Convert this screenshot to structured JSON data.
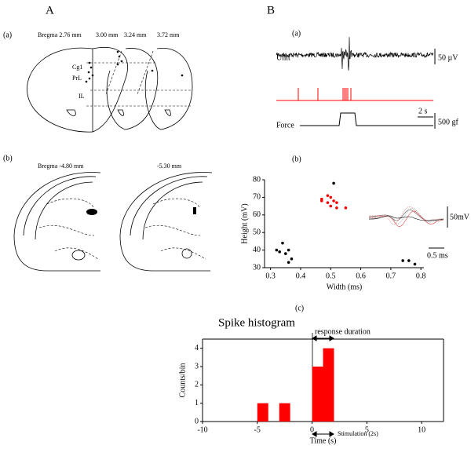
{
  "panels": {
    "A": "A",
    "B": "B",
    "Aa": "(a)",
    "Ab": "(b)",
    "Ba": "(a)",
    "Bb": "(b)",
    "Bc": "(c)"
  },
  "atlas": {
    "top_labels": [
      "Bregma 2.76 mm",
      "3.00 mm",
      "3.24 mm",
      "3.72 mm"
    ],
    "regions": [
      "Cg1",
      "PrL",
      "IL"
    ],
    "bottom_labels": [
      "Bregma -4.80 mm",
      "-5.30 mm"
    ]
  },
  "recording": {
    "unit_label": "Unit",
    "unit_scale": "50 µV",
    "time_scale": "2 s",
    "force_label": "Force",
    "force_scale": "500 gf"
  },
  "waveforms": {
    "amp_scale": "50mV",
    "time_scale": "0.5 ms"
  },
  "chart_data": [
    {
      "type": "scatter",
      "x_label": "Width (ms)",
      "y_label": "Height (mV)",
      "xlim": [
        0.28,
        0.81
      ],
      "xticks": [
        0.3,
        0.4,
        0.5,
        0.6,
        0.7,
        0.8
      ],
      "ylim": [
        30,
        80
      ],
      "yticks": [
        30,
        40,
        50,
        60,
        70,
        80
      ],
      "series": [
        {
          "color": "#000000",
          "x": [
            0.32,
            0.33,
            0.34,
            0.35,
            0.36,
            0.37,
            0.36,
            0.51,
            0.74,
            0.76,
            0.78
          ],
          "values": [
            40,
            39,
            44,
            38,
            40,
            35,
            33,
            78,
            34,
            34,
            32
          ]
        },
        {
          "color": "#ff0000",
          "x": [
            0.47,
            0.49,
            0.5,
            0.51,
            0.49,
            0.52,
            0.5,
            0.52,
            0.55,
            0.47
          ],
          "values": [
            69,
            71,
            70,
            68,
            67,
            67,
            65,
            64,
            64,
            68
          ]
        }
      ]
    },
    {
      "type": "histogram",
      "title": "Spike histogram",
      "x_label": "Time (s)",
      "y_label": "Counts/bin",
      "color": "#ff0000",
      "xlim": [
        -10,
        12
      ],
      "xticks": [
        -10,
        -5,
        0,
        5,
        10
      ],
      "ylim": [
        0,
        4.5
      ],
      "yticks": [
        0,
        1,
        2,
        3,
        4
      ],
      "bins": [
        -10,
        -9,
        -8,
        -7,
        -6,
        -5,
        -4,
        -3,
        -2,
        -1,
        0,
        1,
        2,
        3,
        4,
        5,
        6,
        7,
        8,
        9,
        10,
        11,
        12
      ],
      "counts": [
        0,
        0,
        0,
        0,
        0,
        1,
        0,
        1,
        0,
        0,
        3,
        4,
        0,
        0,
        0,
        0,
        0,
        0,
        0,
        0,
        0,
        0
      ],
      "annotations": [
        "response duration",
        "Stimulation (2s)"
      ]
    }
  ]
}
